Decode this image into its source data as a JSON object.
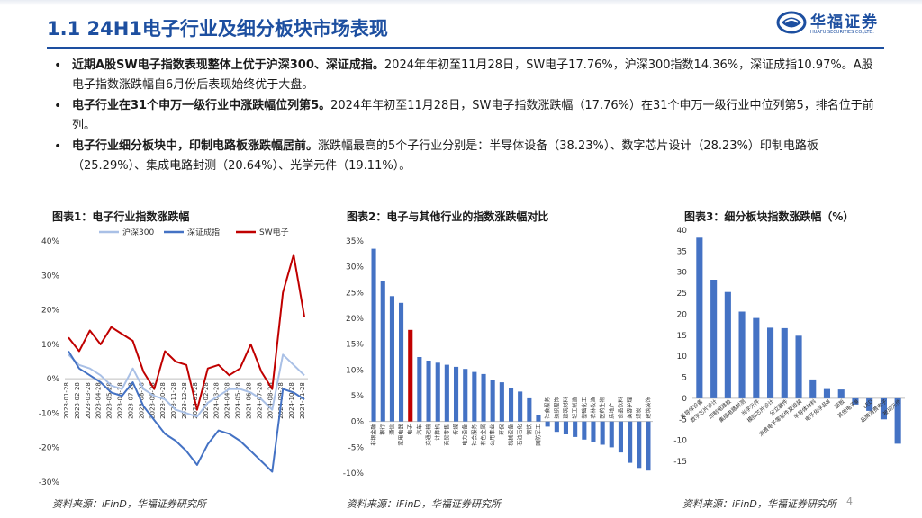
{
  "header": {
    "title": "1.1 24H1电子行业及细分板块市场表现"
  },
  "logo": {
    "name": "华福证券",
    "english": "HUAFU SECURITIES CO.,LTD."
  },
  "bullets": [
    {
      "bold": "近期A股SW电子指数表现整体上优于沪深300、深证成指。",
      "text": "2024年年初至11月28日，SW电子17.76%，沪深300指数14.36%，深证成指10.97%。A股电子指数涨跌幅自6月份后表现始终优于大盘。"
    },
    {
      "bold": "电子行业在31个申万一级行业中涨跌幅位列第5。",
      "text": "2024年年初至11月28日，SW电子指数涨跌幅（17.76%）在31个申万一级行业中位列第5，排名位于前列。"
    },
    {
      "bold": "电子行业细分板块中，印制电路板涨跌幅居前。",
      "text": "涨跌幅最高的5个子行业分别是：半导体设备（38.23%）、数字芯片设计（28.23%）印制电路板（25.29%）、集成电路封测（20.64%）、光学元件（19.11%）。"
    }
  ],
  "colors": {
    "brand": "#1d4fa0",
    "hs300": "#a9c0e6",
    "szcz": "#4472c4",
    "swdz": "#c00000",
    "bar": "#4472c4",
    "bar_highlight": "#c00000"
  },
  "sources": [
    "资料来源：iFinD，华福证券研究所",
    "资料来源：iFinD，华福证券研究所",
    "资料来源：iFinD，华福证券研究所"
  ],
  "page_number": "4",
  "chart_titles": [
    "图表1：电子行业指数涨跌幅",
    "图表2：电子与其他行业的指数涨跌幅对比",
    "图表3：细分板块指数涨跌幅（%）"
  ],
  "chart_data": [
    {
      "type": "line",
      "title": "图表1：电子行业指数涨跌幅",
      "ylim": [
        -30,
        40
      ],
      "ytick_labels": [
        "40%",
        "30%",
        "20%",
        "10%",
        "0%",
        "-10%",
        "-20%",
        "-30%"
      ],
      "x": [
        "2023-01-28",
        "2023-02-28",
        "2023-03-28",
        "2023-04-28",
        "2023-05-28",
        "2023-06-28",
        "2023-07-28",
        "2023-08-28",
        "2023-09-28",
        "2023-10-28",
        "2023-11-28",
        "2023-12-28",
        "2024-01-28",
        "2024-02-28",
        "2024-03-28",
        "2024-04-28",
        "2024-05-28",
        "2024-06-28",
        "2024-07-28",
        "2024-08-28",
        "2024-09-28",
        "2024-10-28",
        "2024-11-28"
      ],
      "legend": "top",
      "series": [
        {
          "name": "沪深300",
          "values": [
            7,
            4,
            3,
            1,
            -2,
            -3,
            3,
            -3,
            -5,
            -6,
            -9,
            -10,
            -11,
            -7,
            -5,
            -3,
            -3,
            -4,
            -6,
            -9,
            7,
            4,
            1
          ]
        },
        {
          "name": "深证成指",
          "values": [
            8,
            3,
            1,
            -1,
            -4,
            -5,
            -1,
            -8,
            -12,
            -16,
            -18,
            -21,
            -25,
            -19,
            -15,
            -16,
            -18,
            -21,
            -24,
            -27,
            -3,
            -4,
            -6
          ]
        },
        {
          "name": "SW电子",
          "values": [
            12,
            8,
            14,
            10,
            15,
            13,
            11,
            2,
            -3,
            8,
            5,
            4,
            -9,
            3,
            4,
            1,
            3,
            10,
            2,
            -3,
            25,
            36,
            18
          ]
        }
      ]
    },
    {
      "type": "bar",
      "title": "图表2：电子与其他行业的指数涨跌幅对比",
      "ylim": [
        -10,
        35
      ],
      "ytick_labels": [
        "35%",
        "30%",
        "25%",
        "20%",
        "15%",
        "10%",
        "5%",
        "0%",
        "-5%",
        "-10%"
      ],
      "categories": [
        "非银金融",
        "银行",
        "通信",
        "家用电器",
        "电子",
        "汽车",
        "交通运输",
        "计算机",
        "商贸零售",
        "传媒",
        "电力设备",
        "社会服务",
        "有色金属",
        "公用事业",
        "环保",
        "机械设备",
        "石油石化",
        "钢铁",
        "国防军工",
        "社会服务",
        "纺织服饰",
        "建筑材料",
        "轻工制造",
        "基础化工",
        "农林牧渔",
        "医药生物",
        "房地产",
        "食品饮料",
        "美容护理",
        "煤炭",
        "建筑装饰"
      ],
      "values": [
        33.5,
        27.2,
        24.3,
        23.0,
        17.76,
        12.5,
        11.8,
        11.4,
        11.0,
        10.6,
        10.2,
        9.6,
        9.2,
        8.0,
        7.6,
        6.4,
        5.8,
        4.5,
        1.2,
        -1.0,
        -2.0,
        -2.5,
        -3.0,
        -3.5,
        -4.0,
        -4.5,
        -5.0,
        -6.0,
        -8.0,
        -9.0,
        -9.5
      ],
      "highlight": "电子"
    },
    {
      "type": "bar",
      "title": "图表3：细分板块指数涨跌幅（%）",
      "ylim": [
        -15,
        40
      ],
      "ytick_labels": [
        "40",
        "35",
        "30",
        "25",
        "20",
        "15",
        "10",
        "5",
        "0",
        "-5",
        "-10",
        "-15"
      ],
      "categories": [
        "半导体设备",
        "数字芯片设计",
        "印制电路板",
        "集成电路封测",
        "光学元件",
        "模拟芯片设计",
        "分立器件",
        "消费电子零部件及组装",
        "半导体材料",
        "电子化学品Ⅲ",
        "面板",
        "其他电子Ⅲ",
        "LED",
        "品牌消费电子",
        "被动元件"
      ],
      "values": [
        38.23,
        28.23,
        25.29,
        20.64,
        19.11,
        16.8,
        16.7,
        14.9,
        4.5,
        2.2,
        2.1,
        -1.5,
        -3.0,
        -5.0,
        -10.8
      ]
    }
  ]
}
